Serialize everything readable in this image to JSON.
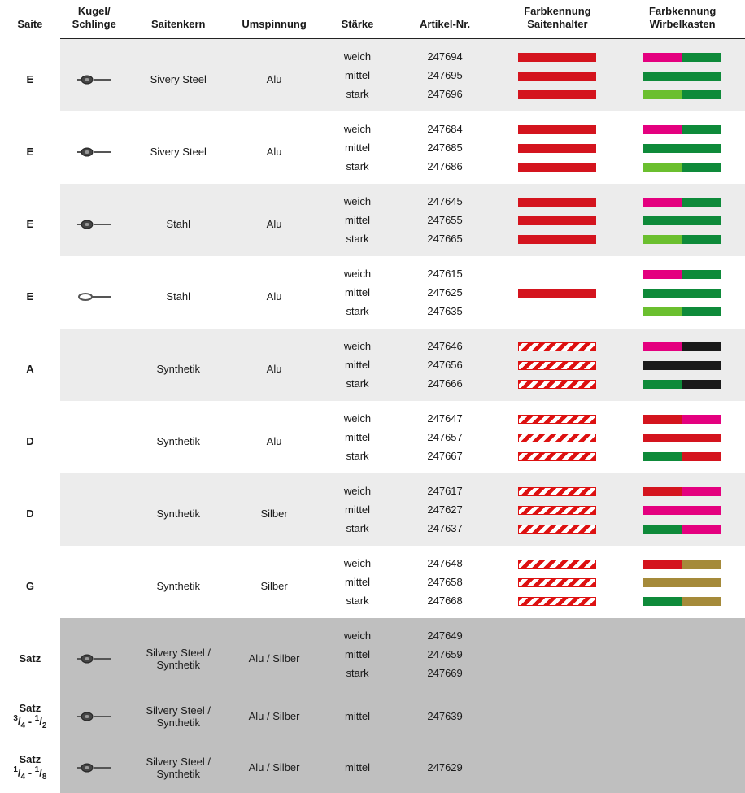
{
  "headers": {
    "saite": "Saite",
    "kugel": "Kugel/\nSchlinge",
    "kern": "Saitenkern",
    "ums": "Umspinnung",
    "staerke": "Stärke",
    "artikel": "Artikel-Nr.",
    "sw1": "Farbkennung\nSaitenhalter",
    "sw2": "Farbkennung\nWirbelkasten"
  },
  "colors": {
    "red": "#d4141e",
    "green": "#0e8a3a",
    "lgreen": "#6bbf2f",
    "magenta": "#e4007f",
    "black": "#1a1a1a",
    "olive": "#a58a3a"
  },
  "groups": [
    {
      "shade": "light",
      "saite": "E",
      "icon": "ball",
      "kern": "Sivery Steel",
      "ums": "Alu",
      "rows": [
        {
          "staerke": "weich",
          "artikel": "247694",
          "sw1": {
            "type": "solid",
            "left": "red",
            "right": "red"
          },
          "sw2": {
            "type": "solid",
            "left": "magenta",
            "right": "green"
          }
        },
        {
          "staerke": "mittel",
          "artikel": "247695",
          "sw1": {
            "type": "solid",
            "left": "red",
            "right": "red"
          },
          "sw2": {
            "type": "solid",
            "left": "green",
            "right": "green"
          }
        },
        {
          "staerke": "stark",
          "artikel": "247696",
          "sw1": {
            "type": "solid",
            "left": "red",
            "right": "red"
          },
          "sw2": {
            "type": "solid",
            "left": "lgreen",
            "right": "green"
          }
        }
      ]
    },
    {
      "shade": "white",
      "saite": "E",
      "icon": "ball",
      "kern": "Sivery Steel",
      "ums": "Alu",
      "rows": [
        {
          "staerke": "weich",
          "artikel": "247684",
          "sw1": {
            "type": "solid",
            "left": "red",
            "right": "red"
          },
          "sw2": {
            "type": "solid",
            "left": "magenta",
            "right": "green"
          }
        },
        {
          "staerke": "mittel",
          "artikel": "247685",
          "sw1": {
            "type": "solid",
            "left": "red",
            "right": "red"
          },
          "sw2": {
            "type": "solid",
            "left": "green",
            "right": "green"
          }
        },
        {
          "staerke": "stark",
          "artikel": "247686",
          "sw1": {
            "type": "solid",
            "left": "red",
            "right": "red"
          },
          "sw2": {
            "type": "solid",
            "left": "lgreen",
            "right": "green"
          }
        }
      ]
    },
    {
      "shade": "light",
      "saite": "E",
      "icon": "ball",
      "kern": "Stahl",
      "ums": "Alu",
      "rows": [
        {
          "staerke": "weich",
          "artikel": "247645",
          "sw1": {
            "type": "solid",
            "left": "red",
            "right": "red"
          },
          "sw2": {
            "type": "solid",
            "left": "magenta",
            "right": "green"
          }
        },
        {
          "staerke": "mittel",
          "artikel": "247655",
          "sw1": {
            "type": "solid",
            "left": "red",
            "right": "red"
          },
          "sw2": {
            "type": "solid",
            "left": "green",
            "right": "green"
          }
        },
        {
          "staerke": "stark",
          "artikel": "247665",
          "sw1": {
            "type": "solid",
            "left": "red",
            "right": "red"
          },
          "sw2": {
            "type": "solid",
            "left": "lgreen",
            "right": "green"
          }
        }
      ]
    },
    {
      "shade": "white",
      "saite": "E",
      "icon": "loop",
      "kern": "Stahl",
      "ums": "Alu",
      "rows": [
        {
          "staerke": "weich",
          "artikel": "247615",
          "sw1": null,
          "sw2": {
            "type": "solid",
            "left": "magenta",
            "right": "green"
          }
        },
        {
          "staerke": "mittel",
          "artikel": "247625",
          "sw1": {
            "type": "solid",
            "left": "red",
            "right": "red"
          },
          "sw2": {
            "type": "solid",
            "left": "green",
            "right": "green"
          }
        },
        {
          "staerke": "stark",
          "artikel": "247635",
          "sw1": null,
          "sw2": {
            "type": "solid",
            "left": "lgreen",
            "right": "green"
          }
        }
      ]
    },
    {
      "shade": "light",
      "saite": "A",
      "icon": null,
      "kern": "Synthetik",
      "ums": "Alu",
      "rows": [
        {
          "staerke": "weich",
          "artikel": "247646",
          "sw1": {
            "type": "stripe"
          },
          "sw2": {
            "type": "solid",
            "left": "magenta",
            "right": "black"
          }
        },
        {
          "staerke": "mittel",
          "artikel": "247656",
          "sw1": {
            "type": "stripe"
          },
          "sw2": {
            "type": "solid",
            "left": "black",
            "right": "black"
          }
        },
        {
          "staerke": "stark",
          "artikel": "247666",
          "sw1": {
            "type": "stripe"
          },
          "sw2": {
            "type": "solid",
            "left": "green",
            "right": "black"
          }
        }
      ]
    },
    {
      "shade": "white",
      "saite": "D",
      "icon": null,
      "kern": "Synthetik",
      "ums": "Alu",
      "rows": [
        {
          "staerke": "weich",
          "artikel": "247647",
          "sw1": {
            "type": "stripe"
          },
          "sw2": {
            "type": "solid",
            "left": "red",
            "right": "magenta"
          }
        },
        {
          "staerke": "mittel",
          "artikel": "247657",
          "sw1": {
            "type": "stripe"
          },
          "sw2": {
            "type": "solid",
            "left": "red",
            "right": "red"
          }
        },
        {
          "staerke": "stark",
          "artikel": "247667",
          "sw1": {
            "type": "stripe"
          },
          "sw2": {
            "type": "solid",
            "left": "green",
            "right": "red"
          }
        }
      ]
    },
    {
      "shade": "light",
      "saite": "D",
      "icon": null,
      "kern": "Synthetik",
      "ums": "Silber",
      "rows": [
        {
          "staerke": "weich",
          "artikel": "247617",
          "sw1": {
            "type": "stripe"
          },
          "sw2": {
            "type": "solid",
            "left": "red",
            "right": "magenta"
          }
        },
        {
          "staerke": "mittel",
          "artikel": "247627",
          "sw1": {
            "type": "stripe"
          },
          "sw2": {
            "type": "solid",
            "left": "magenta",
            "right": "magenta"
          }
        },
        {
          "staerke": "stark",
          "artikel": "247637",
          "sw1": {
            "type": "stripe"
          },
          "sw2": {
            "type": "solid",
            "left": "green",
            "right": "magenta"
          }
        }
      ]
    },
    {
      "shade": "white",
      "saite": "G",
      "icon": null,
      "kern": "Synthetik",
      "ums": "Silber",
      "rows": [
        {
          "staerke": "weich",
          "artikel": "247648",
          "sw1": {
            "type": "stripe"
          },
          "sw2": {
            "type": "solid",
            "left": "red",
            "right": "olive"
          }
        },
        {
          "staerke": "mittel",
          "artikel": "247658",
          "sw1": {
            "type": "stripe"
          },
          "sw2": {
            "type": "solid",
            "left": "olive",
            "right": "olive"
          }
        },
        {
          "staerke": "stark",
          "artikel": "247668",
          "sw1": {
            "type": "stripe"
          },
          "sw2": {
            "type": "solid",
            "left": "green",
            "right": "olive"
          }
        }
      ]
    },
    {
      "shade": "dark",
      "saite": "Satz",
      "icon": "ball",
      "kern": "Silvery Steel /\nSynthetik",
      "ums": "Alu / Silber",
      "rows": [
        {
          "staerke": "weich",
          "artikel": "247649",
          "sw1": null,
          "sw2": null
        },
        {
          "staerke": "mittel",
          "artikel": "247659",
          "sw1": null,
          "sw2": null
        },
        {
          "staerke": "stark",
          "artikel": "247669",
          "sw1": null,
          "sw2": null
        }
      ]
    },
    {
      "shade": "dark",
      "saite_html": "<b>Satz</b><br><span class='frac-sup'>3</span>/<span class='frac-sub'>4</span> - <span class='frac-sup'>1</span>/<span class='frac-sub'>2</span>",
      "icon": "ball",
      "kern": "Silvery Steel /\nSynthetik",
      "ums": "Alu / Silber",
      "rows": [
        {
          "staerke": "mittel",
          "artikel": "247639",
          "sw1": null,
          "sw2": null
        }
      ]
    },
    {
      "shade": "dark",
      "saite_html": "<b>Satz</b><br><span class='frac-sup'>1</span>/<span class='frac-sub'>4</span> - <span class='frac-sup'>1</span>/<span class='frac-sub'>8</span>",
      "icon": "ball",
      "kern": "Silvery Steel /\nSynthetik",
      "ums": "Alu / Silber",
      "rows": [
        {
          "staerke": "mittel",
          "artikel": "247629",
          "sw1": null,
          "sw2": null
        }
      ]
    }
  ]
}
